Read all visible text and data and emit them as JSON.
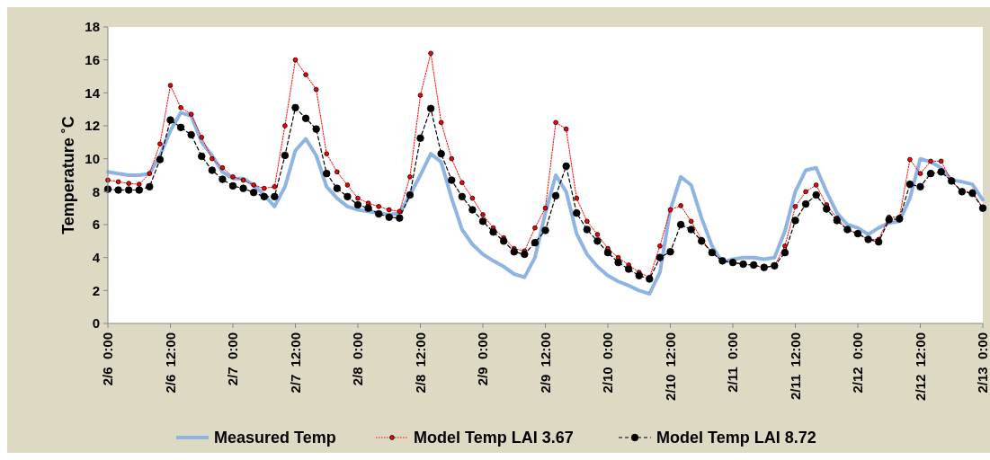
{
  "chart_data": {
    "type": "line",
    "ylabel": "Temperature ˚C",
    "categories": [
      "2/6  0:00",
      null,
      null,
      null,
      null,
      null,
      "2/6  12:00",
      null,
      null,
      null,
      null,
      null,
      "2/7  0:00",
      null,
      null,
      null,
      null,
      null,
      "2/7  12:00",
      null,
      null,
      null,
      null,
      null,
      "2/8  0:00",
      null,
      null,
      null,
      null,
      null,
      "2/8  12:00",
      null,
      null,
      null,
      null,
      null,
      "2/9  0:00",
      null,
      null,
      null,
      null,
      null,
      "2/9  12:00",
      null,
      null,
      null,
      null,
      null,
      "2/10  0:00",
      null,
      null,
      null,
      null,
      null,
      "2/10  12:00",
      null,
      null,
      null,
      null,
      null,
      "2/11  0:00",
      null,
      null,
      null,
      null,
      null,
      "2/11  12:00",
      null,
      null,
      null,
      null,
      null,
      "2/12  0:00",
      null,
      null,
      null,
      null,
      null,
      "2/12  12:00",
      null,
      null,
      null,
      null,
      null,
      "2/13  0:00"
    ],
    "series": [
      {
        "name": "Measured Temp",
        "color": "#8db4e2",
        "marker": "none",
        "line_style": "solid",
        "values": [
          9.2,
          9.1,
          9.0,
          9.0,
          9.1,
          10.2,
          11.7,
          12.8,
          12.6,
          11.0,
          10.2,
          9.2,
          8.8,
          8.8,
          8.4,
          7.8,
          7.1,
          8.3,
          10.5,
          11.2,
          10.2,
          8.3,
          7.6,
          7.1,
          6.9,
          6.8,
          6.7,
          6.6,
          6.7,
          7.8,
          9.0,
          10.3,
          9.8,
          7.6,
          5.7,
          4.8,
          4.2,
          3.8,
          3.45,
          3.0,
          2.8,
          4.0,
          6.7,
          9.0,
          8.0,
          5.45,
          4.2,
          3.45,
          2.9,
          2.55,
          2.3,
          2.0,
          1.8,
          3.1,
          6.9,
          8.9,
          8.4,
          6.4,
          4.7,
          3.7,
          3.9,
          4.0,
          4.0,
          3.9,
          4.0,
          5.6,
          8.0,
          9.3,
          9.45,
          8.0,
          6.7,
          6.0,
          5.8,
          5.4,
          5.8,
          6.1,
          6.2,
          7.6,
          10.0,
          9.8,
          9.45,
          8.7,
          8.6,
          8.45,
          7.5
        ]
      },
      {
        "name": "Model Temp LAI 3.67",
        "color": "#ff0000",
        "marker": "circle",
        "line_style": "dotted",
        "values": [
          8.7,
          8.6,
          8.5,
          8.45,
          9.1,
          10.9,
          14.45,
          13.1,
          12.7,
          11.3,
          10.0,
          9.45,
          8.9,
          8.7,
          8.4,
          8.2,
          8.3,
          12.0,
          16.0,
          15.1,
          14.2,
          10.3,
          9.2,
          8.4,
          7.6,
          7.3,
          7.1,
          6.9,
          6.8,
          8.9,
          13.85,
          16.4,
          12.2,
          10.0,
          8.55,
          7.6,
          6.6,
          5.8,
          5.2,
          4.55,
          4.4,
          5.8,
          7.0,
          12.2,
          11.8,
          7.6,
          6.2,
          5.4,
          4.55,
          4.0,
          3.55,
          3.1,
          2.8,
          4.7,
          6.9,
          7.15,
          6.2,
          5.1,
          4.3,
          3.8,
          3.7,
          3.6,
          3.5,
          3.4,
          3.5,
          4.7,
          7.1,
          8.0,
          8.4,
          7.2,
          6.4,
          5.7,
          5.45,
          5.1,
          5.1,
          6.45,
          6.45,
          9.95,
          9.1,
          9.85,
          9.85,
          8.65,
          8.0,
          8.0,
          7.0
        ]
      },
      {
        "name": "Model Temp LAI 8.72",
        "color": "#000000",
        "marker": "circle",
        "line_style": "dashed",
        "values": [
          8.15,
          8.1,
          8.1,
          8.1,
          8.3,
          9.95,
          12.35,
          11.9,
          11.45,
          10.15,
          9.3,
          8.75,
          8.35,
          8.2,
          7.95,
          7.7,
          7.7,
          10.2,
          13.1,
          12.45,
          11.8,
          9.1,
          8.2,
          7.7,
          7.2,
          7.0,
          6.65,
          6.45,
          6.4,
          7.8,
          11.25,
          13.05,
          10.3,
          8.7,
          7.7,
          6.9,
          6.2,
          5.55,
          5.0,
          4.35,
          4.2,
          4.9,
          5.65,
          7.75,
          9.55,
          6.7,
          5.7,
          5.0,
          4.3,
          3.7,
          3.3,
          2.9,
          2.7,
          4.0,
          4.35,
          6.0,
          5.7,
          5.0,
          4.3,
          3.8,
          3.7,
          3.6,
          3.55,
          3.4,
          3.5,
          4.3,
          6.25,
          7.25,
          7.8,
          6.95,
          6.25,
          5.7,
          5.45,
          5.1,
          4.95,
          6.3,
          6.35,
          8.45,
          8.3,
          9.1,
          9.2,
          8.65,
          8.0,
          7.9,
          7.0
        ]
      }
    ],
    "ylim": [
      0,
      18
    ],
    "yticks": [
      0,
      2,
      4,
      6,
      8,
      10,
      12,
      14,
      16,
      18
    ],
    "grid": false,
    "legend": "bottom"
  }
}
